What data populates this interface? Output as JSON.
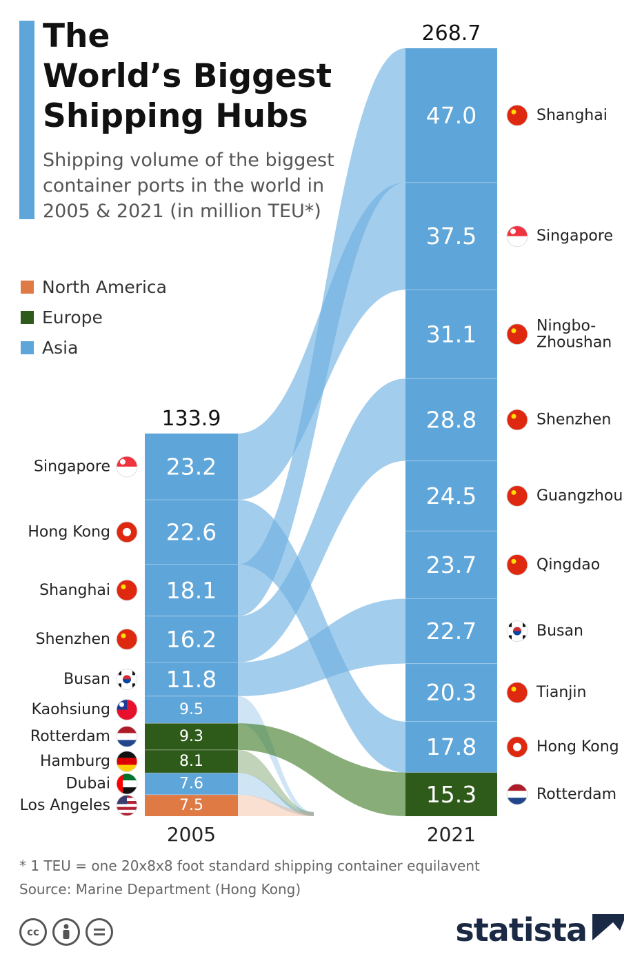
{
  "header": {
    "title_lines": [
      "The",
      "World’s Biggest",
      "Shipping Hubs"
    ],
    "subtitle_lines": [
      "Shipping volume of the biggest",
      "container ports in the world in",
      "2005 & 2021 (in million TEU*)"
    ]
  },
  "legend": [
    {
      "label": "North America",
      "color": "#e07a45"
    },
    {
      "label": "Europe",
      "color": "#2e5a1a"
    },
    {
      "label": "Asia",
      "color": "#5ea5d9"
    }
  ],
  "chart_data": {
    "type": "bar",
    "subtype": "stacked-bar-with-flows",
    "unit": "million TEU",
    "bars": [
      {
        "year": "2005",
        "total_label": "133.9",
        "segments": [
          {
            "port": "Singapore",
            "value": 23.2,
            "label": "23.2",
            "region": "Asia",
            "flag": "singapore-flag"
          },
          {
            "port": "Hong Kong",
            "value": 22.6,
            "label": "22.6",
            "region": "Asia",
            "flag": "hong-kong-flag"
          },
          {
            "port": "Shanghai",
            "value": 18.1,
            "label": "18.1",
            "region": "Asia",
            "flag": "china-flag"
          },
          {
            "port": "Shenzhen",
            "value": 16.2,
            "label": "16.2",
            "region": "Asia",
            "flag": "china-flag"
          },
          {
            "port": "Busan",
            "value": 11.8,
            "label": "11.8",
            "region": "Asia",
            "flag": "south-korea-flag"
          },
          {
            "port": "Kaohsiung",
            "value": 9.5,
            "label": "9.5",
            "region": "Asia",
            "flag": "taiwan-flag"
          },
          {
            "port": "Rotterdam",
            "value": 9.3,
            "label": "9.3",
            "region": "Europe",
            "flag": "netherlands-flag"
          },
          {
            "port": "Hamburg",
            "value": 8.1,
            "label": "8.1",
            "region": "Europe",
            "flag": "germany-flag"
          },
          {
            "port": "Dubai",
            "value": 7.6,
            "label": "7.6",
            "region": "Asia",
            "flag": "uae-flag"
          },
          {
            "port": "Los Angeles",
            "value": 7.5,
            "label": "7.5",
            "region": "North America",
            "flag": "usa-flag"
          }
        ]
      },
      {
        "year": "2021",
        "total_label": "268.7",
        "segments": [
          {
            "port": "Shanghai",
            "value": 47.0,
            "label": "47.0",
            "region": "Asia",
            "flag": "china-flag"
          },
          {
            "port": "Singapore",
            "value": 37.5,
            "label": "37.5",
            "region": "Asia",
            "flag": "singapore-flag"
          },
          {
            "port": "Ningbo-Zhoushan",
            "value": 31.1,
            "label": "31.1",
            "region": "Asia",
            "flag": "china-flag",
            "label_lines": [
              "Ningbo-",
              "Zhoushan"
            ]
          },
          {
            "port": "Shenzhen",
            "value": 28.8,
            "label": "28.8",
            "region": "Asia",
            "flag": "china-flag"
          },
          {
            "port": "Guangzhou",
            "value": 24.5,
            "label": "24.5",
            "region": "Asia",
            "flag": "china-flag"
          },
          {
            "port": "Qingdao",
            "value": 23.7,
            "label": "23.7",
            "region": "Asia",
            "flag": "china-flag"
          },
          {
            "port": "Busan",
            "value": 22.7,
            "label": "22.7",
            "region": "Asia",
            "flag": "south-korea-flag"
          },
          {
            "port": "Tianjin",
            "value": 20.3,
            "label": "20.3",
            "region": "Asia",
            "flag": "china-flag"
          },
          {
            "port": "Hong Kong",
            "value": 17.8,
            "label": "17.8",
            "region": "Asia",
            "flag": "hong-kong-flag"
          },
          {
            "port": "Rotterdam",
            "value": 15.3,
            "label": "15.3",
            "region": "Europe",
            "flag": "netherlands-flag"
          }
        ]
      }
    ]
  },
  "footer": {
    "footnote": "* 1 TEU = one 20x8x8 foot standard shipping container equilavent",
    "source": "Source: Marine Department (Hong Kong)",
    "license_icons": [
      "cc-icon",
      "by-icon",
      "nd-icon"
    ],
    "brand": "statista"
  }
}
